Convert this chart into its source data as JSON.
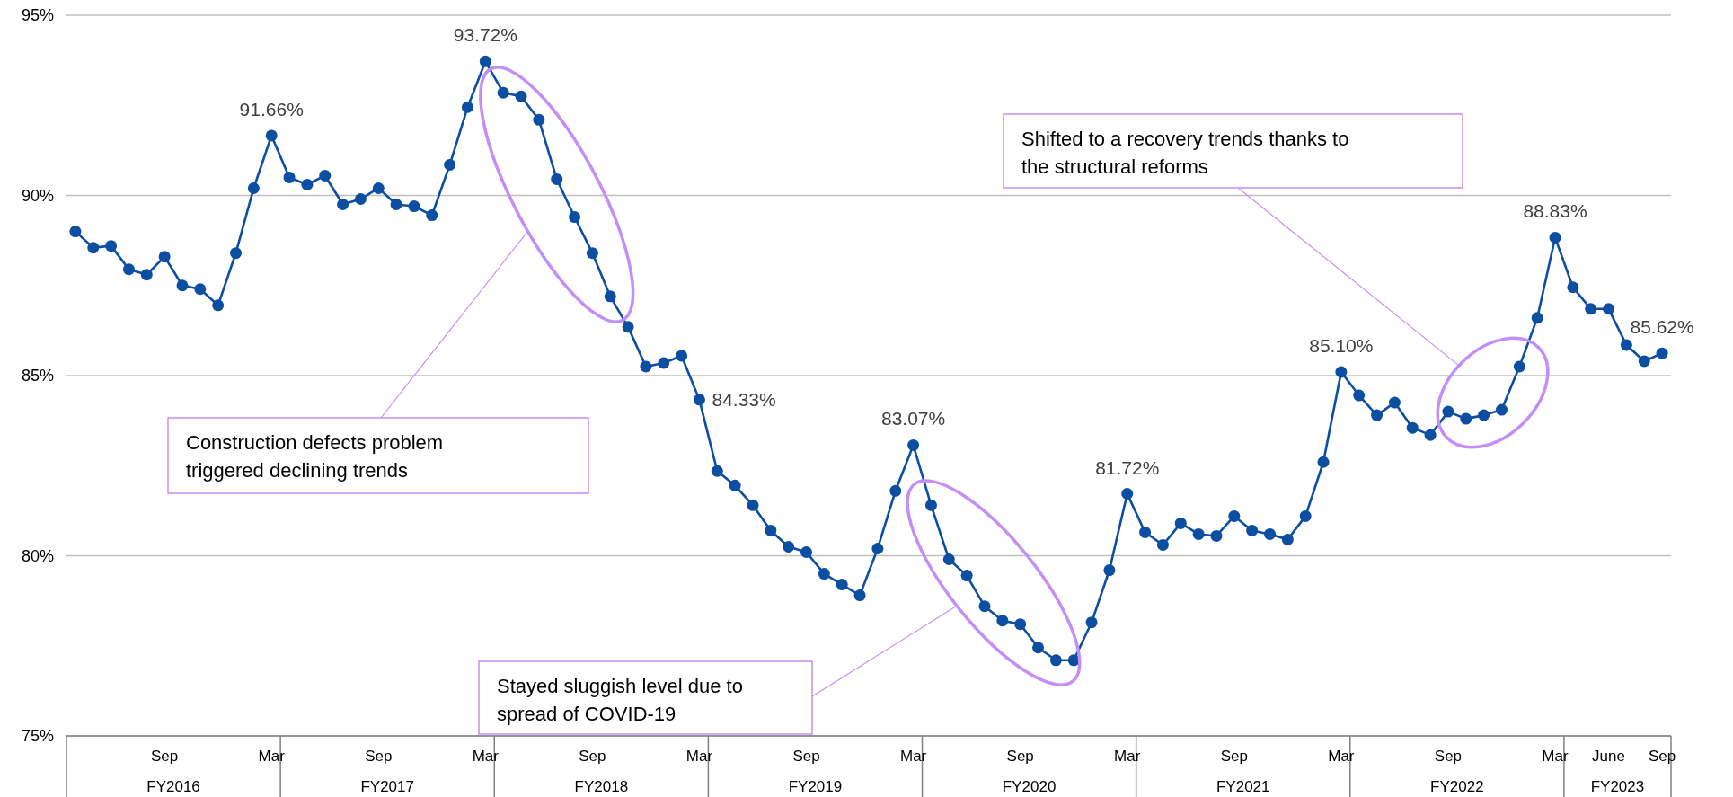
{
  "chart_data": {
    "type": "line",
    "categories": [
      null,
      null,
      null,
      null,
      null,
      "Sep",
      null,
      null,
      null,
      null,
      null,
      "Mar",
      null,
      null,
      null,
      null,
      null,
      "Sep",
      null,
      null,
      null,
      null,
      null,
      "Mar",
      null,
      null,
      null,
      null,
      null,
      "Sep",
      null,
      null,
      null,
      null,
      null,
      "Mar",
      null,
      null,
      null,
      null,
      null,
      "Sep",
      null,
      null,
      null,
      null,
      null,
      "Mar",
      null,
      null,
      null,
      null,
      null,
      "Sep",
      null,
      null,
      null,
      null,
      null,
      "Mar",
      null,
      null,
      null,
      null,
      null,
      "Sep",
      null,
      null,
      null,
      null,
      null,
      "Mar",
      null,
      null,
      null,
      null,
      null,
      "Sep",
      null,
      null,
      null,
      null,
      null,
      "Mar",
      null,
      null,
      "June",
      null,
      null,
      "Sep"
    ],
    "series": [
      {
        "color": "#0b4ea2",
        "values": [
          89.0,
          88.55,
          88.6,
          87.95,
          87.8,
          88.3,
          87.5,
          87.4,
          86.95,
          88.4,
          90.2,
          91.66,
          90.5,
          90.3,
          90.55,
          89.75,
          89.9,
          90.2,
          89.75,
          89.7,
          89.45,
          90.85,
          92.45,
          93.72,
          92.85,
          92.75,
          92.1,
          90.45,
          89.4,
          88.4,
          87.2,
          86.35,
          85.25,
          85.35,
          85.55,
          84.33,
          82.35,
          81.95,
          81.4,
          80.7,
          80.25,
          80.1,
          79.5,
          79.2,
          78.9,
          80.2,
          81.8,
          83.07,
          81.4,
          79.9,
          79.45,
          78.6,
          78.2,
          78.1,
          77.45,
          77.1,
          77.1,
          78.15,
          79.6,
          81.72,
          80.65,
          80.3,
          80.9,
          80.6,
          80.55,
          81.1,
          80.7,
          80.6,
          80.45,
          81.1,
          82.6,
          85.1,
          84.45,
          83.9,
          84.25,
          83.55,
          83.35,
          84.0,
          83.8,
          83.9,
          84.05,
          85.25,
          86.6,
          88.83,
          87.45,
          86.85,
          86.85,
          85.85,
          85.4,
          85.62
        ],
        "value_labels": [
          null,
          null,
          null,
          null,
          null,
          null,
          null,
          null,
          null,
          null,
          null,
          "91.66%",
          null,
          null,
          null,
          null,
          null,
          null,
          null,
          null,
          null,
          null,
          null,
          "93.72%",
          null,
          null,
          null,
          null,
          null,
          null,
          null,
          null,
          null,
          null,
          null,
          "84.33%",
          null,
          null,
          null,
          null,
          null,
          null,
          null,
          null,
          null,
          null,
          null,
          "83.07%",
          null,
          null,
          null,
          null,
          null,
          null,
          null,
          null,
          null,
          null,
          null,
          "81.72%",
          null,
          null,
          null,
          null,
          null,
          null,
          null,
          null,
          null,
          null,
          null,
          "85.10%",
          null,
          null,
          null,
          null,
          null,
          null,
          null,
          null,
          null,
          null,
          null,
          "88.83%",
          null,
          null,
          null,
          null,
          null,
          "85.62%"
        ]
      }
    ],
    "ylim": [
      75,
      95
    ],
    "yticks": [
      {
        "value": 75,
        "label": "75%"
      },
      {
        "value": 80,
        "label": "80%"
      },
      {
        "value": 85,
        "label": "85%"
      },
      {
        "value": 90,
        "label": "90%"
      },
      {
        "value": 95,
        "label": "95%"
      }
    ],
    "grid": "y",
    "marker": "circle",
    "line_style": "solid",
    "annotations": [
      "Construction defects problem triggered declining trends",
      "Stayed sluggish level due to spread of COVID-19",
      "Shifted to a recovery trends thanks to the structural reforms",
      "FY2016",
      "FY2017",
      "FY2018",
      "FY2019",
      "FY2020",
      "FY2021",
      "FY2022",
      "FY2023"
    ]
  }
}
